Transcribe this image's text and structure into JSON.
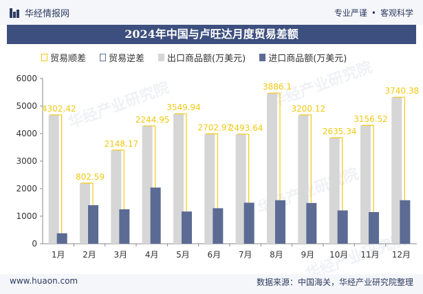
{
  "header": {
    "site_name": "华经情报网",
    "tag1": "专业严谨",
    "tag2": "客观科学"
  },
  "title": "2024年中国与卢旺达月度贸易差额",
  "footer": {
    "url": "www.huaon.com",
    "source": "数据来源：中国海关，华经产业研究院整理"
  },
  "watermark": "华经产业研究院",
  "legend": [
    {
      "label": "贸易顺差",
      "key": "surplus"
    },
    {
      "label": "贸易逆差",
      "key": "deficit"
    },
    {
      "label": "出口商品额(万美元)",
      "key": "export"
    },
    {
      "label": "进口商品额(万美元)",
      "key": "import"
    }
  ],
  "colors": {
    "export": "#d6d6d6",
    "import": "#5b6b94",
    "surplus": "#f2c811",
    "deficit": "#5b6b94",
    "title_bg": "#3d4f7e"
  },
  "chart_data": {
    "type": "bar",
    "categories": [
      "1月",
      "2月",
      "3月",
      "4月",
      "5月",
      "6月",
      "7月",
      "8月",
      "9月",
      "10月",
      "11月",
      "12月"
    ],
    "series": [
      {
        "name": "出口商品额(万美元)",
        "values": [
          4680,
          2200,
          3400,
          4280,
          4720,
          3990,
          3980,
          5470,
          4680,
          3850,
          4300,
          5320
        ]
      },
      {
        "name": "进口商品额(万美元)",
        "values": [
          380,
          1400,
          1250,
          2040,
          1170,
          1290,
          1490,
          1580,
          1480,
          1210,
          1150,
          1580
        ]
      }
    ],
    "balance_labels": [
      "4302.42",
      "802.59",
      "2148.17",
      "2244.95",
      "3549.94",
      "2702.97",
      "2493.64",
      "3886.1",
      "3200.12",
      "2635.34",
      "3156.52",
      "3740.38"
    ],
    "ylim": [
      0,
      6000
    ],
    "yticks": [
      0,
      1000,
      2000,
      3000,
      4000,
      5000,
      6000
    ]
  }
}
